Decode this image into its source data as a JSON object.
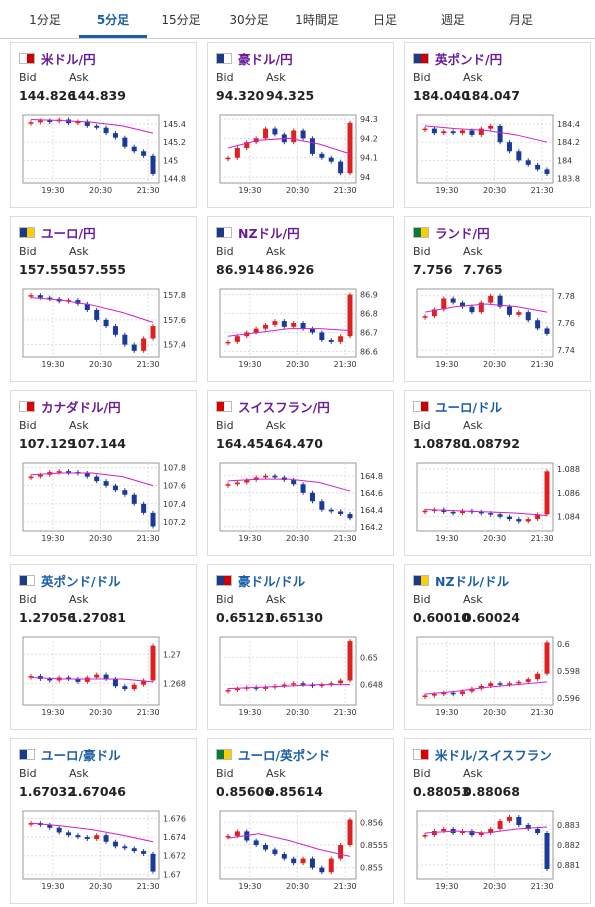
{
  "tabs": [
    "1分足",
    "5分足",
    "15分足",
    "30分足",
    "1時間足",
    "日足",
    "週足",
    "月足"
  ],
  "active_tab": 1,
  "bid_label": "Bid",
  "ask_label": "Ask",
  "xticks": [
    "19:30",
    "20:30",
    "21:30"
  ],
  "cards": [
    {
      "name": "米ドル/円",
      "bid": "144.826",
      "ask": "144.839",
      "chart": {
        "type": "candlestick",
        "ylim": [
          144.75,
          145.5
        ],
        "yticks": [
          145.4,
          145.2,
          145,
          144.8
        ],
        "close": [
          145.42,
          145.44,
          145.43,
          145.45,
          145.41,
          145.43,
          145.38,
          145.36,
          145.3,
          145.25,
          145.15,
          145.1,
          145.05,
          144.85
        ],
        "ma": [
          145.45,
          145.44,
          145.42,
          145.38,
          145.3
        ]
      }
    },
    {
      "name": "豪ドル/円",
      "bid": "94.320",
      "ask": "94.325",
      "chart": {
        "type": "candlestick",
        "ylim": [
          93.97,
          94.32
        ],
        "yticks": [
          94.3,
          94.2,
          94.1,
          94
        ],
        "close": [
          94.1,
          94.15,
          94.18,
          94.2,
          94.25,
          94.22,
          94.18,
          94.24,
          94.2,
          94.12,
          94.1,
          94.08,
          94.02,
          94.28
        ],
        "ma": [
          94.15,
          94.19,
          94.2,
          94.17,
          94.12
        ]
      }
    },
    {
      "name": "英ポンド/円",
      "bid": "184.040",
      "ask": "184.047",
      "chart": {
        "type": "candlestick",
        "ylim": [
          183.75,
          184.5
        ],
        "yticks": [
          184.4,
          184.2,
          184,
          183.8
        ],
        "close": [
          184.35,
          184.3,
          184.32,
          184.3,
          184.33,
          184.28,
          184.35,
          184.38,
          184.2,
          184.1,
          184.0,
          183.95,
          183.9,
          183.85
        ],
        "ma": [
          184.38,
          184.35,
          184.33,
          184.28,
          184.2
        ]
      }
    },
    {
      "name": "ユーロ/円",
      "bid": "157.550",
      "ask": "157.555",
      "chart": {
        "type": "candlestick",
        "ylim": [
          157.3,
          157.85
        ],
        "yticks": [
          157.8,
          157.6,
          157.4
        ],
        "close": [
          157.8,
          157.78,
          157.77,
          157.75,
          157.76,
          157.73,
          157.68,
          157.6,
          157.55,
          157.48,
          157.4,
          157.35,
          157.45,
          157.55
        ],
        "ma": [
          157.78,
          157.76,
          157.72,
          157.66,
          157.58
        ]
      }
    },
    {
      "name": "NZドル/円",
      "bid": "86.914",
      "ask": "86.926",
      "chart": {
        "type": "candlestick",
        "ylim": [
          86.57,
          86.93
        ],
        "yticks": [
          86.9,
          86.8,
          86.7,
          86.6
        ],
        "close": [
          86.65,
          86.68,
          86.7,
          86.72,
          86.74,
          86.76,
          86.73,
          86.75,
          86.72,
          86.7,
          86.66,
          86.65,
          86.68,
          86.9
        ],
        "ma": [
          86.68,
          86.7,
          86.72,
          86.72,
          86.71
        ]
      }
    },
    {
      "name": "ランド/円",
      "bid": "7.756",
      "ask": "7.765",
      "chart": {
        "type": "candlestick",
        "ylim": [
          7.735,
          7.785
        ],
        "yticks": [
          7.78,
          7.76,
          7.74
        ],
        "close": [
          7.765,
          7.77,
          7.778,
          7.775,
          7.772,
          7.768,
          7.775,
          7.78,
          7.772,
          7.766,
          7.768,
          7.762,
          7.756,
          7.752
        ],
        "ma": [
          7.768,
          7.772,
          7.774,
          7.772,
          7.768
        ]
      }
    },
    {
      "name": "カナダドル/円",
      "bid": "107.129",
      "ask": "107.144",
      "chart": {
        "type": "candlestick",
        "ylim": [
          107.1,
          107.85
        ],
        "yticks": [
          107.8,
          107.6,
          107.4,
          107.2
        ],
        "close": [
          107.7,
          107.72,
          107.75,
          107.76,
          107.75,
          107.74,
          107.7,
          107.65,
          107.6,
          107.55,
          107.5,
          107.4,
          107.3,
          107.15
        ],
        "ma": [
          107.72,
          107.74,
          107.74,
          107.7,
          107.6
        ]
      }
    },
    {
      "name": "スイスフラン/円",
      "bid": "164.454",
      "ask": "164.470",
      "chart": {
        "type": "candlestick",
        "ylim": [
          164.15,
          164.95
        ],
        "yticks": [
          164.8,
          164.6,
          164.4,
          164.2
        ],
        "close": [
          164.7,
          164.72,
          164.75,
          164.78,
          164.8,
          164.78,
          164.75,
          164.7,
          164.6,
          164.5,
          164.4,
          164.38,
          164.35,
          164.3
        ],
        "ma": [
          164.74,
          164.76,
          164.76,
          164.72,
          164.62
        ]
      }
    },
    {
      "name": "ユーロ/ドル",
      "bid": "1.08780",
      "ask": "1.08792",
      "chart": {
        "type": "candlestick",
        "ylim": [
          1.0828,
          1.0885
        ],
        "yticks": [
          1.088,
          1.086,
          1.084
        ],
        "close": [
          1.0845,
          1.0846,
          1.0844,
          1.0843,
          1.0845,
          1.0844,
          1.0843,
          1.0842,
          1.084,
          1.0838,
          1.0836,
          1.0838,
          1.0842,
          1.0878
        ],
        "ma": [
          1.0846,
          1.0845,
          1.0844,
          1.0843,
          1.0841
        ]
      }
    },
    {
      "name": "英ポンド/ドル",
      "bid": "1.27056",
      "ask": "1.27081",
      "chart": {
        "type": "candlestick",
        "ylim": [
          1.2665,
          1.2712
        ],
        "yticks": [
          1.27,
          1.268
        ],
        "close": [
          1.2685,
          1.2683,
          1.2682,
          1.2684,
          1.2683,
          1.2681,
          1.2684,
          1.2686,
          1.2683,
          1.2678,
          1.2676,
          1.2679,
          1.2682,
          1.2706
        ],
        "ma": [
          1.2684,
          1.2683,
          1.2683,
          1.2683,
          1.2681
        ]
      }
    },
    {
      "name": "豪ドル/ドル",
      "bid": "0.65121",
      "ask": "0.65130",
      "chart": {
        "type": "candlestick",
        "ylim": [
          0.6465,
          0.6515
        ],
        "yticks": [
          0.65,
          0.648
        ],
        "close": [
          0.6476,
          0.6477,
          0.6478,
          0.6477,
          0.6478,
          0.6479,
          0.648,
          0.6481,
          0.648,
          0.6479,
          0.648,
          0.6481,
          0.6483,
          0.6512
        ],
        "ma": [
          0.6477,
          0.6478,
          0.6479,
          0.648,
          0.648
        ]
      }
    },
    {
      "name": "NZドル/ドル",
      "bid": "0.60010",
      "ask": "0.60024",
      "chart": {
        "type": "candlestick",
        "ylim": [
          0.5955,
          0.6005
        ],
        "yticks": [
          0.6,
          0.598,
          0.596
        ],
        "close": [
          0.5962,
          0.5963,
          0.5964,
          0.5963,
          0.5965,
          0.5967,
          0.5969,
          0.5971,
          0.597,
          0.5971,
          0.5972,
          0.5974,
          0.5978,
          0.6001
        ],
        "ma": [
          0.5963,
          0.5965,
          0.5968,
          0.597,
          0.5972
        ]
      }
    },
    {
      "name": "ユーロ/豪ドル",
      "bid": "1.67032",
      "ask": "1.67046",
      "chart": {
        "type": "candlestick",
        "ylim": [
          1.6695,
          1.6768
        ],
        "yticks": [
          1.676,
          1.674,
          1.672,
          1.67
        ],
        "close": [
          1.6755,
          1.6753,
          1.675,
          1.6745,
          1.6742,
          1.674,
          1.6738,
          1.6742,
          1.6735,
          1.673,
          1.6728,
          1.6725,
          1.6722,
          1.6703
        ],
        "ma": [
          1.6755,
          1.6752,
          1.6748,
          1.6742,
          1.6735
        ]
      }
    },
    {
      "name": "ユーロ/英ポンド",
      "bid": "0.85606",
      "ask": "0.85614",
      "chart": {
        "type": "candlestick",
        "ylim": [
          0.85475,
          0.85625
        ],
        "yticks": [
          0.856,
          0.8555,
          0.855
        ],
        "close": [
          0.8557,
          0.8558,
          0.8556,
          0.8555,
          0.8554,
          0.8553,
          0.8552,
          0.8551,
          0.8552,
          0.855,
          0.8549,
          0.8552,
          0.8555,
          0.85606
        ],
        "ma": [
          0.85565,
          0.85575,
          0.8556,
          0.8554,
          0.85525
        ]
      }
    },
    {
      "name": "米ドル/スイスフラン",
      "bid": "0.88053",
      "ask": "0.88068",
      "chart": {
        "type": "candlestick",
        "ylim": [
          0.8803,
          0.8837
        ],
        "yticks": [
          0.883,
          0.882,
          0.881
        ],
        "close": [
          0.8825,
          0.8827,
          0.8828,
          0.8826,
          0.8827,
          0.8825,
          0.8826,
          0.8828,
          0.8832,
          0.8834,
          0.883,
          0.8828,
          0.8826,
          0.8808
        ],
        "ma": [
          0.8826,
          0.8827,
          0.8826,
          0.8828,
          0.8829
        ]
      }
    }
  ]
}
